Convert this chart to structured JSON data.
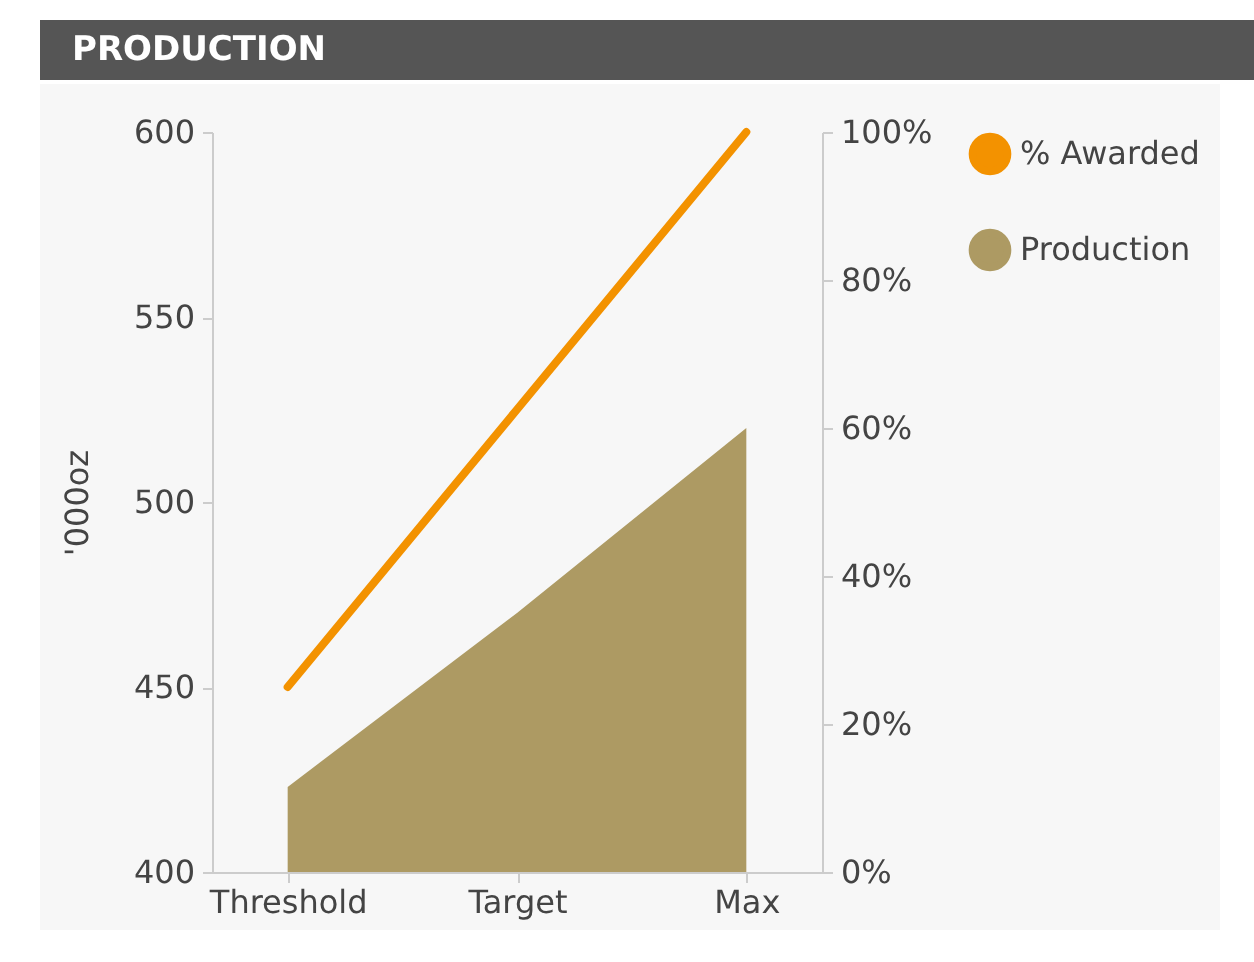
{
  "chart_data": {
    "type": "line",
    "title": "PRODUCTION",
    "ylabel": "'000oz",
    "categories": [
      "Threshold",
      "Target",
      "Max"
    ],
    "series": [
      {
        "name": "% Awarded",
        "axis": "y2",
        "color": "#f39200",
        "values": [
          25,
          62.5,
          100
        ]
      },
      {
        "name": "Production",
        "type": "area",
        "axis": "y",
        "color": "#ad9a63",
        "values": [
          423,
          470,
          520
        ]
      }
    ],
    "ylim": [
      400,
      600
    ],
    "yticks": [
      400,
      450,
      500,
      550,
      600
    ],
    "y2lim": [
      0,
      100
    ],
    "y2ticks": [
      {
        "value": 0,
        "label": "0%"
      },
      {
        "value": 20,
        "label": "20%"
      },
      {
        "value": 40,
        "label": "40%"
      },
      {
        "value": 60,
        "label": "60%"
      },
      {
        "value": 80,
        "label": "80%"
      },
      {
        "value": 100,
        "label": "100%"
      }
    ],
    "legend": "top right",
    "grid": false
  }
}
